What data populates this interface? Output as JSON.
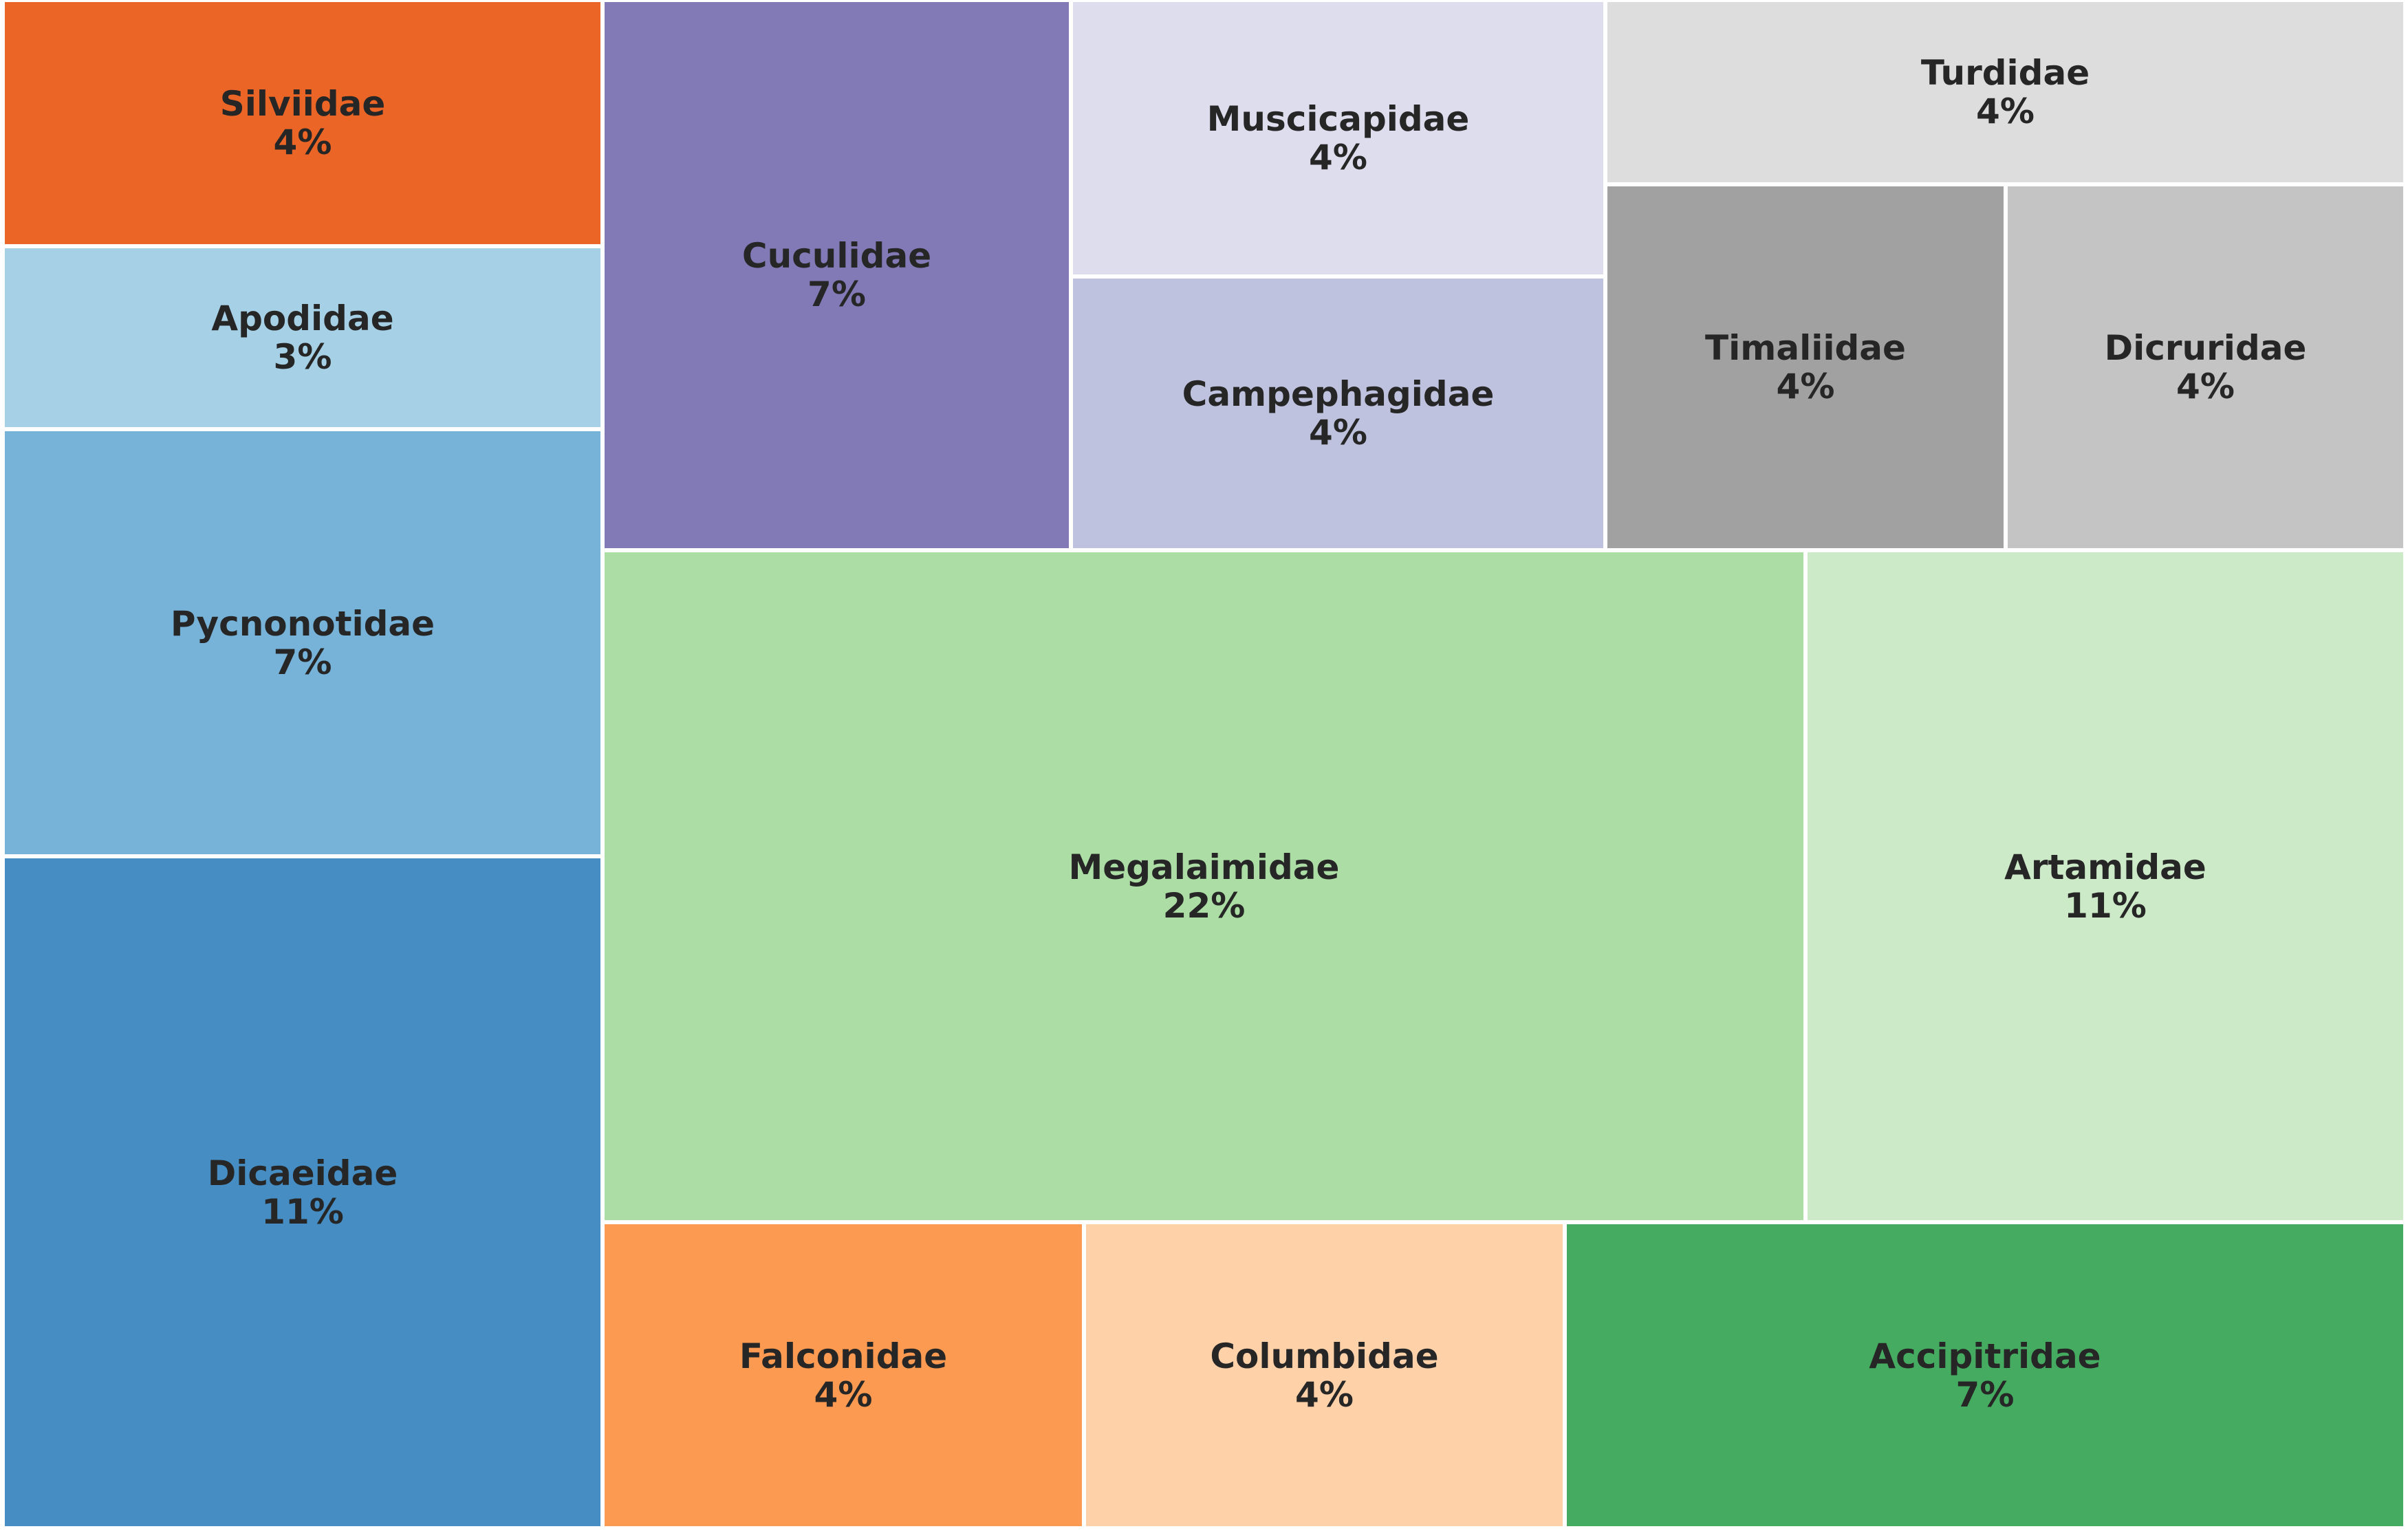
{
  "chart_data": {
    "type": "treemap",
    "title": "",
    "nodes": [
      {
        "name": "Silviidae",
        "label": "4%",
        "value": 4,
        "color": "#eb6626"
      },
      {
        "name": "Apodidae",
        "label": "3%",
        "value": 3,
        "color": "#a6d0e5"
      },
      {
        "name": "Pycnonotidae",
        "label": "7%",
        "value": 7,
        "color": "#77b3d9"
      },
      {
        "name": "Dicaeidae",
        "label": "11%",
        "value": 11,
        "color": "#458dc2"
      },
      {
        "name": "Cuculidae",
        "label": "7%",
        "value": 7,
        "color": "#8279b7"
      },
      {
        "name": "Muscicapidae",
        "label": "4%",
        "value": 4,
        "color": "#dedded"
      },
      {
        "name": "Campephagidae",
        "label": "4%",
        "value": 4,
        "color": "#bfc2de"
      },
      {
        "name": "Turdidae",
        "label": "4%",
        "value": 4,
        "color": "#dddddd"
      },
      {
        "name": "Timaliidae",
        "label": "4%",
        "value": 4,
        "color": "#a1a1a1"
      },
      {
        "name": "Dicruridae",
        "label": "4%",
        "value": 4,
        "color": "#c4c4c4"
      },
      {
        "name": "Megalaimidae",
        "label": "22%",
        "value": 22,
        "color": "#abdda5"
      },
      {
        "name": "Artamidae",
        "label": "11%",
        "value": 11,
        "color": "#cdeac8"
      },
      {
        "name": "Falconidae",
        "label": "4%",
        "value": 4,
        "color": "#fd9a51"
      },
      {
        "name": "Columbidae",
        "label": "4%",
        "value": 4,
        "color": "#fed1a9"
      },
      {
        "name": "Accipitridae",
        "label": "7%",
        "value": 7,
        "color": "#45ab61"
      }
    ]
  }
}
